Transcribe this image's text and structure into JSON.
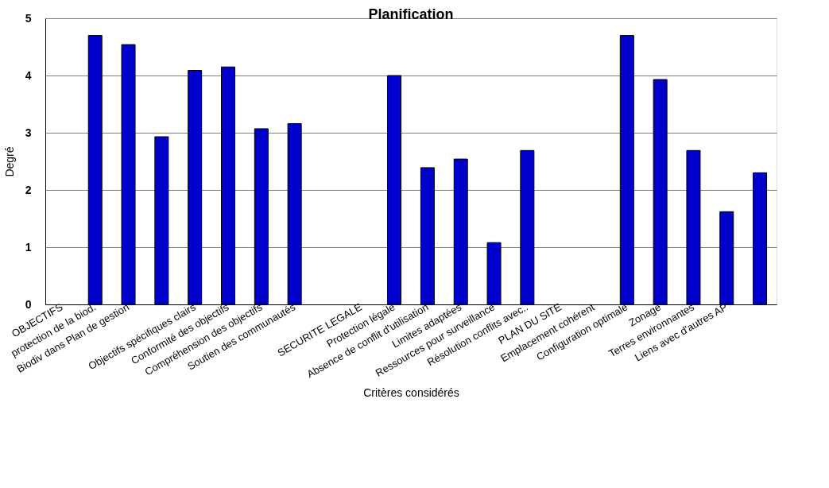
{
  "chart_data": {
    "type": "bar",
    "title": "Planification",
    "xlabel": "Critères considérés",
    "ylabel": "Degré",
    "categories": [
      "OBJECTIFS",
      "protection de la biod.",
      "Biodiv dans Plan de gestion",
      null,
      "Objectifs spécifiques clairs",
      "Conformité des objectifs",
      "Compréhension des objectifs",
      "Soutien des communautés",
      null,
      "SECURITE LEGALE",
      "Protection légale",
      "Absence de conflit d'utilisation",
      "Limites adaptées",
      "Ressources pour surveillance",
      "Résolution conflits avec..",
      "PLAN DU SITE",
      "Emplacement cohérent",
      "Configuration optimale",
      "Zonage",
      "Terres environnantes",
      "Liens avec d'autres AP",
      null
    ],
    "values": [
      null,
      4.7,
      4.54,
      2.93,
      4.09,
      4.15,
      3.07,
      3.16,
      null,
      null,
      4.0,
      2.39,
      2.54,
      1.08,
      2.69,
      null,
      null,
      4.7,
      3.93,
      2.69,
      1.62,
      2.3
    ],
    "color": "#0000cc",
    "ylim": [
      0,
      5
    ],
    "yticks": [
      0,
      1,
      2,
      3,
      4,
      5
    ],
    "grid": "y"
  }
}
